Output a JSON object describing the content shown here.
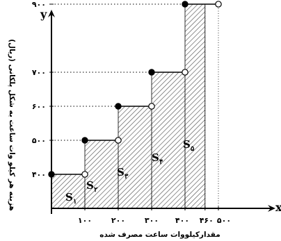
{
  "chart_data": {
    "type": "step",
    "title": "",
    "xlabel": "مقدارکیلووات ساعت مصرف شده",
    "ylabel": "هزینه هر کیلو وات ساعت به شکل پلکانی (ریال)",
    "x_axis_letter": "x",
    "y_axis_letter": "y",
    "x_ticks": [
      {
        "value": 100,
        "label": "۱۰۰"
      },
      {
        "value": 200,
        "label": "۲۰۰"
      },
      {
        "value": 300,
        "label": "۳۰۰"
      },
      {
        "value": 400,
        "label": "۴۰۰"
      },
      {
        "value": 460,
        "label": "۴۶۰"
      },
      {
        "value": 500,
        "label": "۵۰۰"
      }
    ],
    "y_ticks": [
      {
        "value": 400,
        "label": "۴۰۰"
      },
      {
        "value": 500,
        "label": "۵۰۰"
      },
      {
        "value": 600,
        "label": "۶۰۰"
      },
      {
        "value": 700,
        "label": "۷۰۰"
      },
      {
        "value": 900,
        "label": "۹۰۰"
      }
    ],
    "steps": [
      {
        "x_start": 0,
        "x_end": 100,
        "y": 400
      },
      {
        "x_start": 100,
        "x_end": 200,
        "y": 500
      },
      {
        "x_start": 200,
        "x_end": 300,
        "y": 600
      },
      {
        "x_start": 300,
        "x_end": 400,
        "y": 700
      },
      {
        "x_start": 400,
        "x_end": 500,
        "y": 900
      }
    ],
    "shaded_until_x": 460,
    "regions": [
      {
        "letter": "S",
        "sub": "۱"
      },
      {
        "letter": "S",
        "sub": "۲"
      },
      {
        "letter": "S",
        "sub": "۳"
      },
      {
        "letter": "S",
        "sub": "۴"
      },
      {
        "letter": "S",
        "sub": "۵"
      }
    ],
    "xlim": [
      0,
      560
    ],
    "ylim": [
      300,
      1000
    ]
  }
}
